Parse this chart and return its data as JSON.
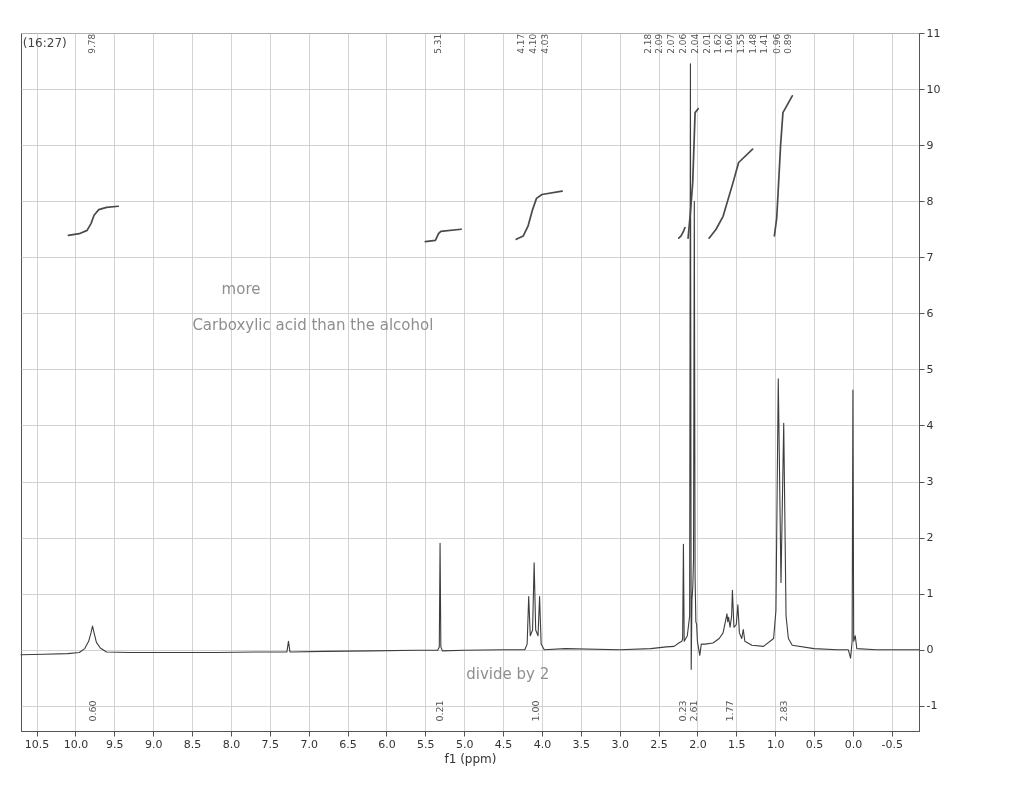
{
  "chart_data": {
    "type": "line",
    "xlabel": "f1 (ppm)",
    "xlim": [
      10.7,
      -0.85
    ],
    "ylim": [
      -1.45,
      11
    ],
    "xticks": [
      10.5,
      {
        "value": 10,
        "label": "10.0"
      },
      9.5,
      {
        "value": 9,
        "label": "9.0"
      },
      8.5,
      {
        "value": 8,
        "label": "8.0"
      },
      7.5,
      {
        "value": 7,
        "label": "7.0"
      },
      6.5,
      {
        "value": 6,
        "label": "6.0"
      },
      5.5,
      {
        "value": 5,
        "label": "5.0"
      },
      4.5,
      {
        "value": 4,
        "label": "4.0"
      },
      3.5,
      {
        "value": 3,
        "label": "3.0"
      },
      2.5,
      {
        "value": 2,
        "label": "2.0"
      },
      1.5,
      {
        "value": 1,
        "label": "1.0"
      },
      0.5,
      {
        "value": 0,
        "label": "0.0"
      },
      -0.5
    ],
    "yticks": [
      -1,
      0,
      1,
      2,
      3,
      4,
      5,
      6,
      7,
      8,
      9,
      10,
      11
    ],
    "grid": true,
    "series": [
      {
        "color": "#3d3d3d",
        "x": [
          10.7,
          10.4,
          10.1,
          9.95,
          9.88,
          9.83,
          9.8,
          9.78,
          9.76,
          9.73,
          9.68,
          9.6,
          9.3,
          8.8,
          8.2,
          7.6,
          7.28,
          7.26,
          7.24,
          6.8,
          6.2,
          5.6,
          5.34,
          5.32,
          5.31,
          5.3,
          5.28,
          5.0,
          4.5,
          4.22,
          4.19,
          4.17,
          4.15,
          4.12,
          4.1,
          4.08,
          4.05,
          4.03,
          4.01,
          3.97,
          3.7,
          3.0,
          2.6,
          2.4,
          2.3,
          2.24,
          2.2,
          2.19,
          2.18,
          2.17,
          2.13,
          2.1,
          2.09,
          2.08,
          2.07,
          2.06,
          2.05,
          2.04,
          2.03,
          2.02,
          2.01,
          2.0,
          1.97,
          1.95,
          1.9,
          1.8,
          1.72,
          1.67,
          1.64,
          1.62,
          1.61,
          1.6,
          1.58,
          1.56,
          1.55,
          1.53,
          1.5,
          1.48,
          1.46,
          1.43,
          1.41,
          1.39,
          1.3,
          1.15,
          1.02,
          0.99,
          0.96,
          0.925,
          0.89,
          0.86,
          0.83,
          0.78,
          0.5,
          0.2,
          0.06,
          0.03,
          0.01,
          0.0,
          -0.01,
          -0.03,
          -0.05,
          -0.3,
          -0.85
        ],
        "values": [
          -0.09,
          -0.08,
          -0.07,
          -0.05,
          0.02,
          0.15,
          0.3,
          0.42,
          0.3,
          0.13,
          0.03,
          -0.04,
          -0.05,
          -0.05,
          -0.05,
          -0.04,
          -0.04,
          0.15,
          -0.04,
          -0.03,
          -0.02,
          -0.01,
          -0.01,
          0.05,
          1.9,
          0.05,
          -0.02,
          -0.01,
          0.0,
          0.0,
          0.1,
          0.95,
          0.25,
          0.35,
          1.55,
          0.35,
          0.25,
          0.95,
          0.1,
          0.0,
          0.02,
          0.0,
          0.02,
          0.05,
          0.06,
          0.12,
          0.15,
          0.2,
          1.88,
          0.15,
          0.25,
          0.6,
          10.45,
          -0.35,
          0.9,
          1.1,
          1.6,
          8.0,
          1.3,
          0.5,
          0.45,
          0.15,
          -0.1,
          0.1,
          0.1,
          0.12,
          0.2,
          0.3,
          0.5,
          0.64,
          0.5,
          0.58,
          0.4,
          0.6,
          1.06,
          0.4,
          0.45,
          0.8,
          0.3,
          0.2,
          0.36,
          0.15,
          0.08,
          0.06,
          0.2,
          0.7,
          4.83,
          1.2,
          4.04,
          0.6,
          0.2,
          0.08,
          0.02,
          0.0,
          0.0,
          -0.15,
          0.15,
          4.63,
          0.15,
          0.25,
          0.02,
          0.0,
          0.0
        ]
      },
      {
        "color": "#4a4a4a",
        "x": [
          10.09,
          9.95,
          9.85,
          9.8,
          9.76,
          9.7,
          9.6,
          9.45
        ],
        "values": [
          7.39,
          7.42,
          7.48,
          7.6,
          7.75,
          7.85,
          7.89,
          7.91
        ]
      },
      {
        "color": "#4a4a4a",
        "x": [
          5.5,
          5.37,
          5.33,
          5.3,
          5.04
        ],
        "values": [
          7.28,
          7.3,
          7.42,
          7.46,
          7.5
        ]
      },
      {
        "color": "#4a4a4a",
        "x": [
          4.33,
          4.24,
          4.18,
          4.12,
          4.07,
          4.0,
          3.74
        ],
        "values": [
          7.32,
          7.38,
          7.55,
          7.85,
          8.05,
          8.12,
          8.18
        ]
      },
      {
        "color": "#4a4a4a",
        "x": [
          2.24,
          2.21,
          2.18,
          2.16
        ],
        "values": [
          7.34,
          7.38,
          7.46,
          7.53
        ]
      },
      {
        "color": "#4a4a4a",
        "x": [
          2.12,
          2.09,
          2.06,
          2.03,
          1.99
        ],
        "values": [
          7.34,
          7.8,
          8.34,
          9.58,
          9.65
        ]
      },
      {
        "color": "#4a4a4a",
        "x": [
          1.85,
          1.76,
          1.67,
          1.54,
          1.47,
          1.29
        ],
        "values": [
          7.34,
          7.5,
          7.73,
          8.34,
          8.69,
          8.93
        ]
      },
      {
        "color": "#4a4a4a",
        "x": [
          1.01,
          0.98,
          0.96,
          0.93,
          0.9,
          0.78
        ],
        "values": [
          7.38,
          7.7,
          8.21,
          9.0,
          9.58,
          9.88
        ]
      }
    ],
    "annotations": [
      "(16:27)",
      "9.78",
      "5.31",
      "4.17",
      "4.10",
      "4.03",
      "2.18",
      "2.09",
      "2.07",
      "2.06",
      "2.04",
      "2.01",
      "1.62",
      "1.60",
      "1.55",
      "1.48",
      "1.41",
      "0.96",
      "0.89",
      "more",
      "Carboxylic acid than the alcohol",
      "divide by 2",
      "0.60",
      "0.21",
      "1.00",
      "0.23",
      "2.61",
      "1.77",
      "2.83"
    ]
  }
}
